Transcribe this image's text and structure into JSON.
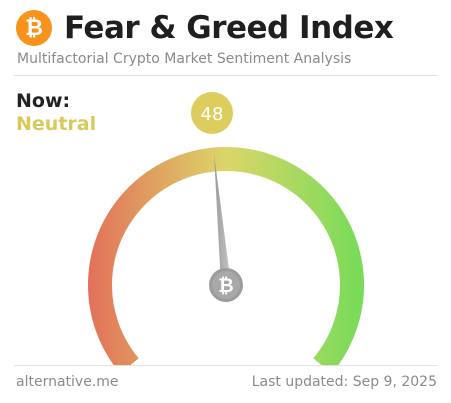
{
  "header": {
    "logo_glyph": "₿",
    "logo_color": "#f7931a",
    "title": "Fear & Greed Index",
    "subtitle": "Multifactorial Crypto Market Sentiment Analysis"
  },
  "status": {
    "now_label": "Now:",
    "classification": "Neutral",
    "classification_color": "#d9c95c"
  },
  "gauge": {
    "value": 48,
    "min": 0,
    "max": 100,
    "value_badge_color": "#dccd5e",
    "hub_glyph": "₿",
    "colors": {
      "fear": "#e0644a",
      "neutral": "#d9d25c",
      "greed": "#6ad84a"
    }
  },
  "footer": {
    "source": "alternative.me",
    "last_updated": "Last updated: Sep 9, 2025"
  }
}
